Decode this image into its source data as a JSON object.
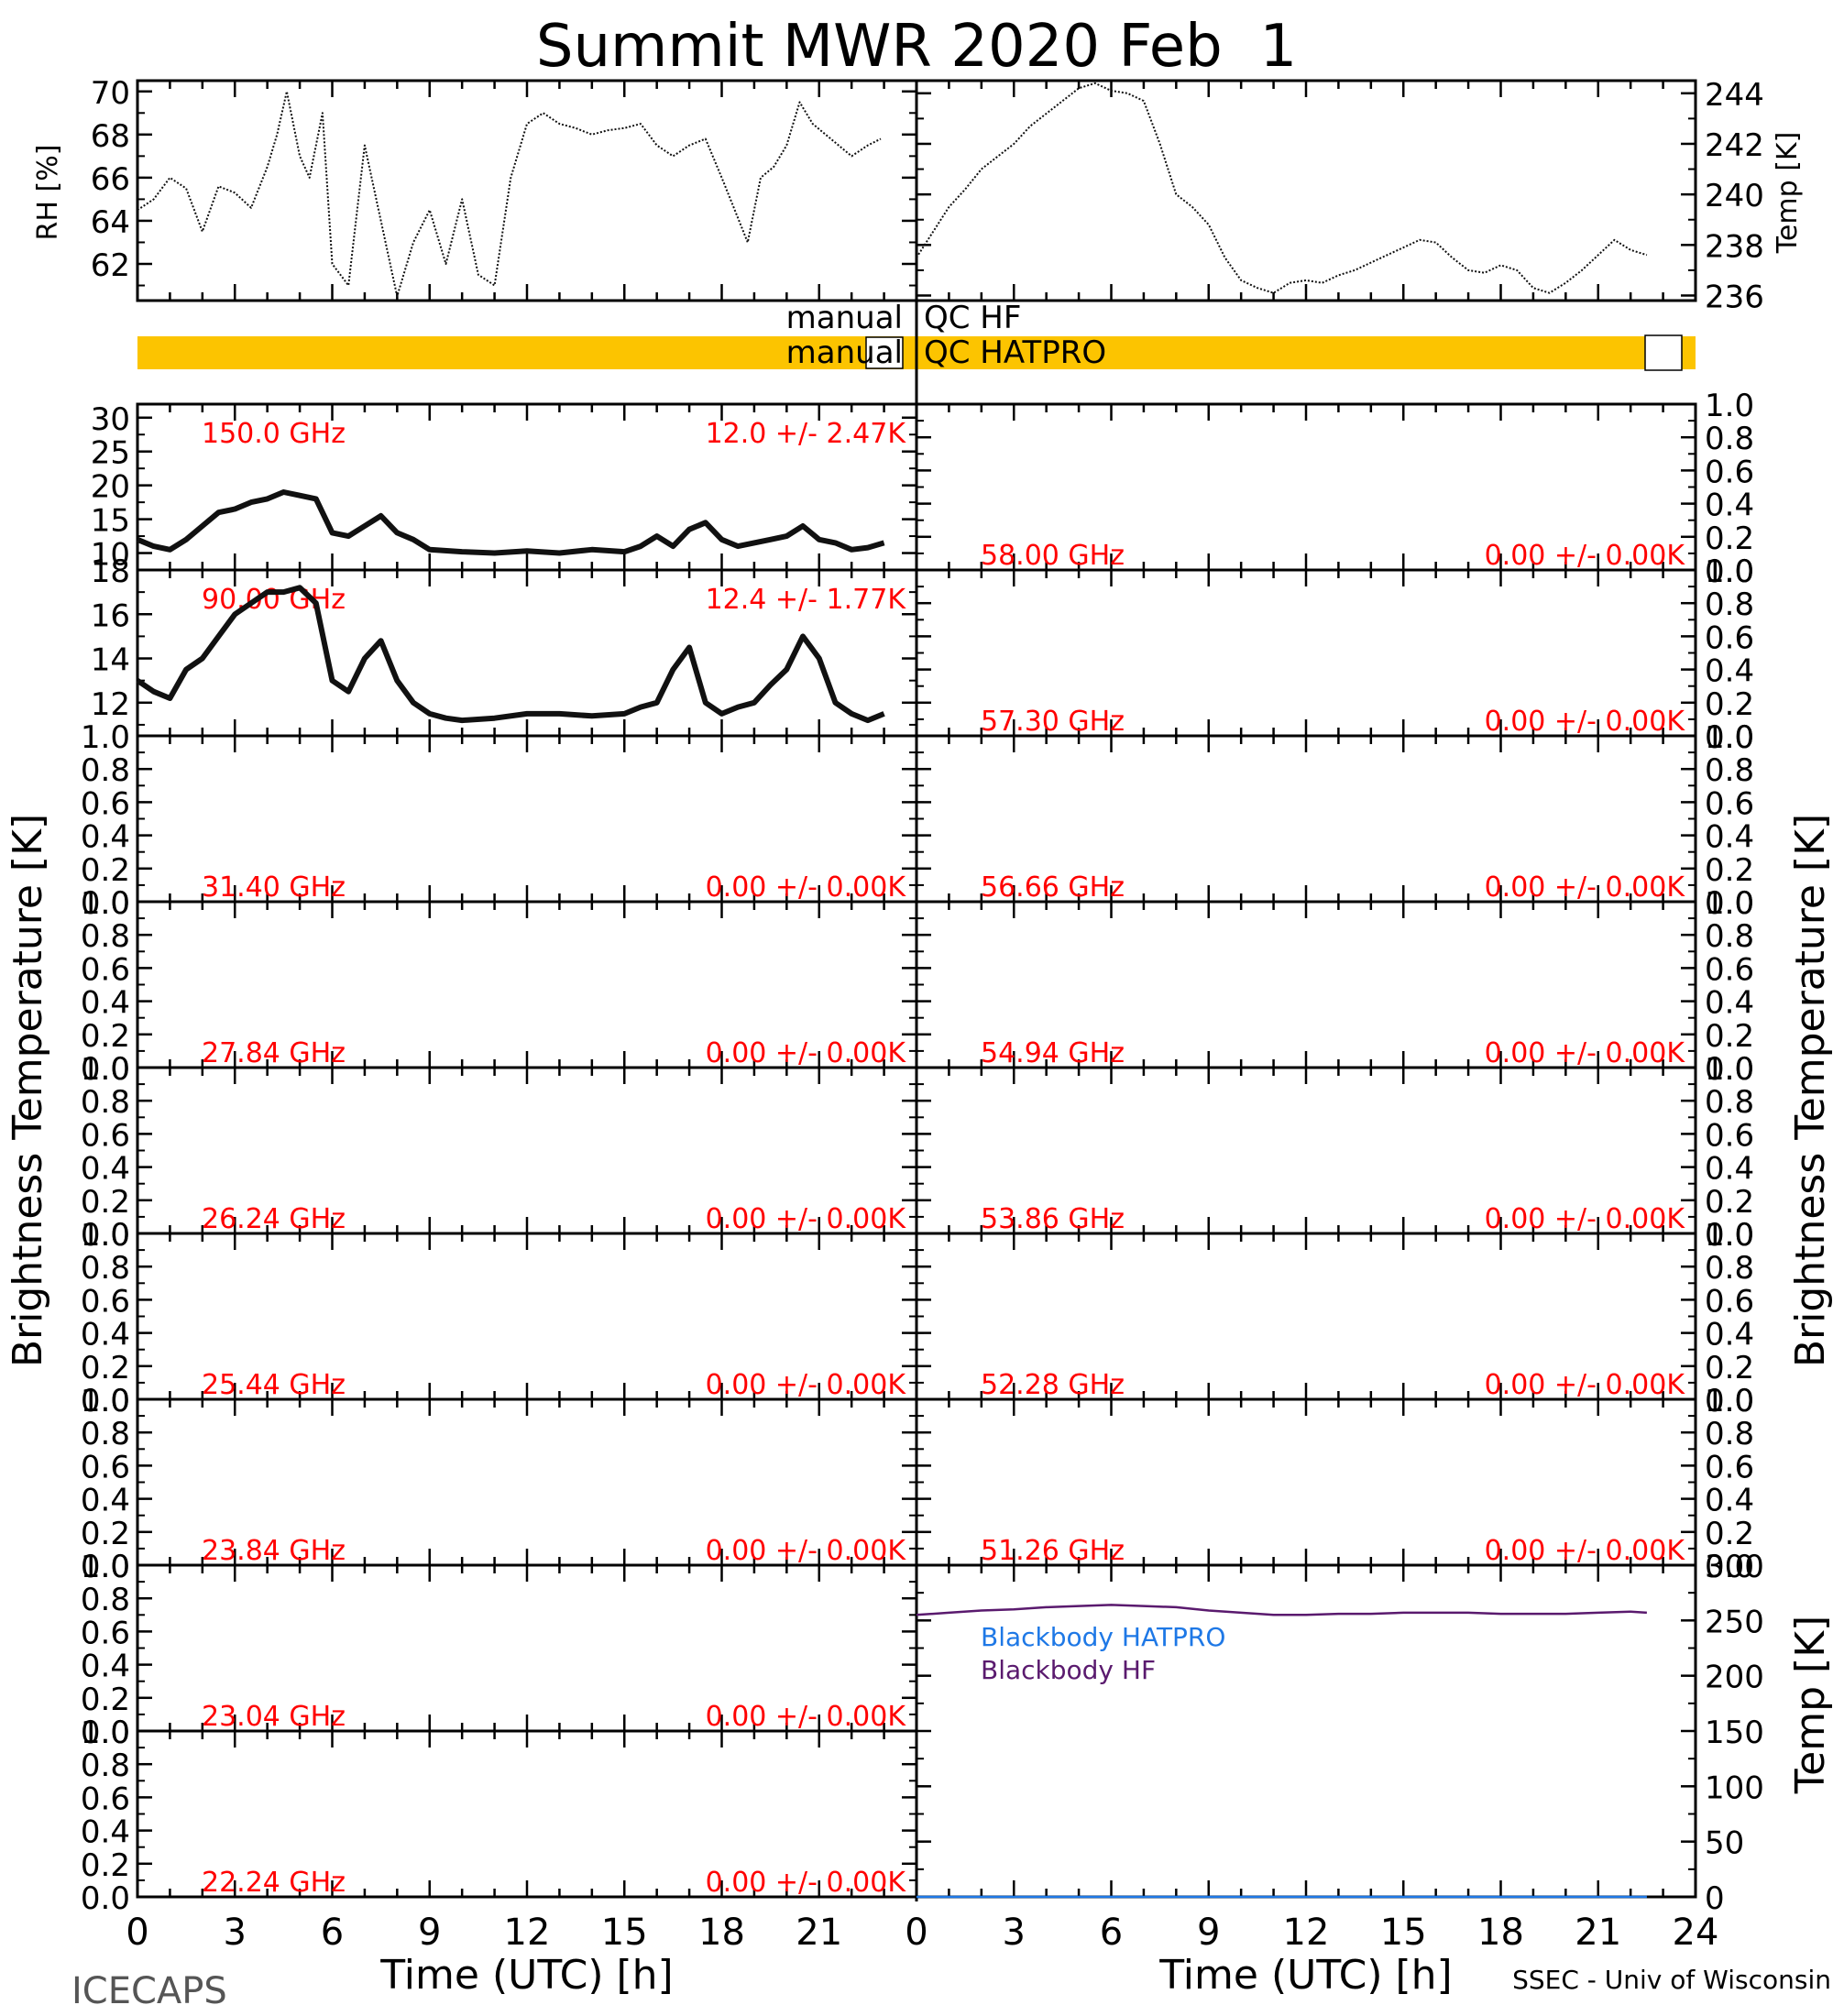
{
  "title": "Summit MWR 2020 Feb  1",
  "footer": {
    "left": "ICECAPS",
    "right": "SSEC - Univ of Wisconsin"
  },
  "axis_labels": {
    "time": "Time (UTC) [h]",
    "brightness_left": "Brightness Temperature [K]",
    "brightness_right": "Brightness Temperature [K]",
    "rh": "RH [%]",
    "temp_top": "Temp [K]",
    "temp_bb": "Temp [K]"
  },
  "qc": {
    "hf_prefix": "manual",
    "hf_label": "QC HF",
    "hatpro_prefix": "manual",
    "hatpro_label": "QC HATPRO",
    "bar_color": "#fcc400"
  },
  "colors": {
    "channel_text": "#ff0000",
    "hatpro": "#1e78e6",
    "hf": "#5a1a6e"
  },
  "chart_data": [
    {
      "type": "line",
      "panel": "rh",
      "ylabel": "RH [%]",
      "xlim": [
        0,
        24
      ],
      "ylim": [
        60.3,
        70.5
      ],
      "yticks": [
        62,
        64,
        66,
        68,
        70
      ],
      "x": [
        0.0,
        0.5,
        1.0,
        1.5,
        2.0,
        2.5,
        3.0,
        3.5,
        4.0,
        4.3,
        4.6,
        5.0,
        5.3,
        5.7,
        6.0,
        6.5,
        7.0,
        7.5,
        8.0,
        8.5,
        9.0,
        9.5,
        10.0,
        10.5,
        11.0,
        11.5,
        12.0,
        12.5,
        13.0,
        13.5,
        14.0,
        14.5,
        15.0,
        15.5,
        16.0,
        16.5,
        17.0,
        17.5,
        18.0,
        18.4,
        18.8,
        19.2,
        19.6,
        20.0,
        20.4,
        20.8,
        21.2,
        21.6,
        22.0,
        22.5,
        22.9
      ],
      "series": [
        {
          "values": [
            64.5,
            65.0,
            66.0,
            65.5,
            63.5,
            65.6,
            65.3,
            64.6,
            66.5,
            68.0,
            70.0,
            67.0,
            66.0,
            69.0,
            62.0,
            61.0,
            67.5,
            64.0,
            60.5,
            63.0,
            64.5,
            62.0,
            65.0,
            61.5,
            61.0,
            66.0,
            68.5,
            69.0,
            68.5,
            68.3,
            68.0,
            68.2,
            68.3,
            68.5,
            67.5,
            67.0,
            67.5,
            67.8,
            66.0,
            64.5,
            63.0,
            66.0,
            66.5,
            67.5,
            69.5,
            68.5,
            68.0,
            67.5,
            67.0,
            67.5,
            67.8
          ]
        }
      ]
    },
    {
      "type": "line",
      "panel": "temp",
      "ylabel": "Temp [K]",
      "xlim": [
        0,
        24
      ],
      "ylim": [
        235.8,
        244.5
      ],
      "yticks": [
        236,
        238,
        240,
        242,
        244
      ],
      "x": [
        0.0,
        0.5,
        1.0,
        1.5,
        2.0,
        2.5,
        3.0,
        3.5,
        4.0,
        4.5,
        5.0,
        5.5,
        6.0,
        6.5,
        7.0,
        7.5,
        8.0,
        8.5,
        9.0,
        9.5,
        10.0,
        10.5,
        11.0,
        11.5,
        12.0,
        12.5,
        13.0,
        13.5,
        14.0,
        14.5,
        15.0,
        15.5,
        16.0,
        16.5,
        17.0,
        17.5,
        18.0,
        18.5,
        19.0,
        19.5,
        20.0,
        20.5,
        21.0,
        21.5,
        22.0,
        22.5
      ],
      "series": [
        {
          "values": [
            237.5,
            238.5,
            239.5,
            240.2,
            241.0,
            241.5,
            242.0,
            242.7,
            243.2,
            243.7,
            244.2,
            244.4,
            244.1,
            244.0,
            243.7,
            242.0,
            240.0,
            239.5,
            238.8,
            237.5,
            236.6,
            236.3,
            236.1,
            236.5,
            236.6,
            236.5,
            236.8,
            237.0,
            237.3,
            237.6,
            237.9,
            238.2,
            238.1,
            237.5,
            237.0,
            236.9,
            237.2,
            237.0,
            236.3,
            236.1,
            236.5,
            237.0,
            237.6,
            238.2,
            237.8,
            237.6
          ]
        }
      ]
    },
    {
      "type": "line",
      "panel": "ch150",
      "title": "150.0 GHz",
      "annotation": "12.0 +/-  2.47K",
      "xlim": [
        0,
        24
      ],
      "ylim": [
        7.5,
        32
      ],
      "yticks": [
        10,
        15,
        20,
        25,
        30
      ],
      "x": [
        0.0,
        0.5,
        1.0,
        1.5,
        2.0,
        2.5,
        3.0,
        3.5,
        4.0,
        4.5,
        5.0,
        5.5,
        6.0,
        6.5,
        7.0,
        7.5,
        8.0,
        8.5,
        9.0,
        10.0,
        11.0,
        12.0,
        13.0,
        14.0,
        15.0,
        15.5,
        16.0,
        16.5,
        17.0,
        17.5,
        18.0,
        18.5,
        19.0,
        19.5,
        20.0,
        20.5,
        21.0,
        21.5,
        22.0,
        22.5,
        23.0
      ],
      "series": [
        {
          "values": [
            12.0,
            11.0,
            10.5,
            12.0,
            14.0,
            16.0,
            16.5,
            17.5,
            18.0,
            19.0,
            18.5,
            18.0,
            13.0,
            12.5,
            14.0,
            15.5,
            13.0,
            12.0,
            10.5,
            10.2,
            10.0,
            10.3,
            10.0,
            10.5,
            10.2,
            11.0,
            12.5,
            11.0,
            13.5,
            14.5,
            12.0,
            11.0,
            11.5,
            12.0,
            12.5,
            14.0,
            12.0,
            11.5,
            10.5,
            10.8,
            11.5
          ]
        }
      ]
    },
    {
      "type": "line",
      "panel": "ch90",
      "title": "90.00 GHz",
      "annotation": "12.4 +/-  1.77K",
      "xlim": [
        0,
        24
      ],
      "ylim": [
        10.5,
        18
      ],
      "yticks": [
        12,
        14,
        16,
        18
      ],
      "x": [
        0.0,
        0.5,
        1.0,
        1.5,
        2.0,
        2.5,
        3.0,
        3.5,
        4.0,
        4.5,
        5.0,
        5.5,
        6.0,
        6.5,
        7.0,
        7.5,
        8.0,
        8.5,
        9.0,
        9.5,
        10.0,
        11.0,
        12.0,
        13.0,
        14.0,
        15.0,
        15.5,
        16.0,
        16.5,
        17.0,
        17.5,
        18.0,
        18.5,
        19.0,
        19.5,
        20.0,
        20.5,
        21.0,
        21.5,
        22.0,
        22.5,
        23.0
      ],
      "series": [
        {
          "values": [
            13.0,
            12.5,
            12.2,
            13.5,
            14.0,
            15.0,
            16.0,
            16.5,
            17.0,
            17.0,
            17.2,
            16.5,
            13.0,
            12.5,
            14.0,
            14.8,
            13.0,
            12.0,
            11.5,
            11.3,
            11.2,
            11.3,
            11.5,
            11.5,
            11.4,
            11.5,
            11.8,
            12.0,
            13.5,
            14.5,
            12.0,
            11.5,
            11.8,
            12.0,
            12.8,
            13.5,
            15.0,
            14.0,
            12.0,
            11.5,
            11.2,
            11.5
          ]
        }
      ]
    },
    {
      "type": "line",
      "panel": "ch3140",
      "title": "31.40 GHz",
      "annotation": "0.00 +/-  0.00K",
      "xlim": [
        0,
        24
      ],
      "ylim": [
        0,
        1
      ],
      "yticks": [
        0.0,
        0.2,
        0.4,
        0.6,
        0.8,
        1.0
      ],
      "series": []
    },
    {
      "type": "line",
      "panel": "ch2784",
      "title": "27.84 GHz",
      "annotation": "0.00 +/-  0.00K",
      "xlim": [
        0,
        24
      ],
      "ylim": [
        0,
        1
      ],
      "yticks": [
        0.0,
        0.2,
        0.4,
        0.6,
        0.8,
        1.0
      ],
      "series": []
    },
    {
      "type": "line",
      "panel": "ch2624",
      "title": "26.24 GHz",
      "annotation": "0.00 +/-  0.00K",
      "xlim": [
        0,
        24
      ],
      "ylim": [
        0,
        1
      ],
      "yticks": [
        0.0,
        0.2,
        0.4,
        0.6,
        0.8,
        1.0
      ],
      "series": []
    },
    {
      "type": "line",
      "panel": "ch2544",
      "title": "25.44 GHz",
      "annotation": "0.00 +/-  0.00K",
      "xlim": [
        0,
        24
      ],
      "ylim": [
        0,
        1
      ],
      "yticks": [
        0.0,
        0.2,
        0.4,
        0.6,
        0.8,
        1.0
      ],
      "series": []
    },
    {
      "type": "line",
      "panel": "ch2384",
      "title": "23.84 GHz",
      "annotation": "0.00 +/-  0.00K",
      "xlim": [
        0,
        24
      ],
      "ylim": [
        0,
        1
      ],
      "yticks": [
        0.0,
        0.2,
        0.4,
        0.6,
        0.8,
        1.0
      ],
      "series": []
    },
    {
      "type": "line",
      "panel": "ch2304",
      "title": "23.04 GHz",
      "annotation": "0.00 +/-  0.00K",
      "xlim": [
        0,
        24
      ],
      "ylim": [
        0,
        1
      ],
      "yticks": [
        0.0,
        0.2,
        0.4,
        0.6,
        0.8,
        1.0
      ],
      "series": []
    },
    {
      "type": "line",
      "panel": "ch2224",
      "title": "22.24 GHz",
      "annotation": "0.00 +/-  0.00K",
      "xlim": [
        0,
        24
      ],
      "ylim": [
        0,
        1
      ],
      "yticks": [
        0.0,
        0.2,
        0.4,
        0.6,
        0.8,
        1.0
      ],
      "series": []
    },
    {
      "type": "line",
      "panel": "ch5800",
      "title": "58.00 GHz",
      "annotation": "0.00 +/-  0.00K",
      "xlim": [
        0,
        24
      ],
      "ylim": [
        0,
        1
      ],
      "yticks": [
        0.0,
        0.2,
        0.4,
        0.6,
        0.8,
        1.0
      ],
      "series": []
    },
    {
      "type": "line",
      "panel": "ch5730",
      "title": "57.30 GHz",
      "annotation": "0.00 +/-  0.00K",
      "xlim": [
        0,
        24
      ],
      "ylim": [
        0,
        1
      ],
      "yticks": [
        0.0,
        0.2,
        0.4,
        0.6,
        0.8,
        1.0
      ],
      "series": []
    },
    {
      "type": "line",
      "panel": "ch5666",
      "title": "56.66 GHz",
      "annotation": "0.00 +/-  0.00K",
      "xlim": [
        0,
        24
      ],
      "ylim": [
        0,
        1
      ],
      "yticks": [
        0.0,
        0.2,
        0.4,
        0.6,
        0.8,
        1.0
      ],
      "series": []
    },
    {
      "type": "line",
      "panel": "ch5494",
      "title": "54.94 GHz",
      "annotation": "0.00 +/-  0.00K",
      "xlim": [
        0,
        24
      ],
      "ylim": [
        0,
        1
      ],
      "yticks": [
        0.0,
        0.2,
        0.4,
        0.6,
        0.8,
        1.0
      ],
      "series": []
    },
    {
      "type": "line",
      "panel": "ch5386",
      "title": "53.86 GHz",
      "annotation": "0.00 +/-  0.00K",
      "xlim": [
        0,
        24
      ],
      "ylim": [
        0,
        1
      ],
      "yticks": [
        0.0,
        0.2,
        0.4,
        0.6,
        0.8,
        1.0
      ],
      "series": []
    },
    {
      "type": "line",
      "panel": "ch5228",
      "title": "52.28 GHz",
      "annotation": "0.00 +/-  0.00K",
      "xlim": [
        0,
        24
      ],
      "ylim": [
        0,
        1
      ],
      "yticks": [
        0.0,
        0.2,
        0.4,
        0.6,
        0.8,
        1.0
      ],
      "series": []
    },
    {
      "type": "line",
      "panel": "ch5126",
      "title": "51.26 GHz",
      "annotation": "0.00 +/-  0.00K",
      "xlim": [
        0,
        24
      ],
      "ylim": [
        0,
        1
      ],
      "yticks": [
        0.0,
        0.2,
        0.4,
        0.6,
        0.8,
        1.0
      ],
      "series": []
    },
    {
      "type": "line",
      "panel": "blackbody",
      "ylabel": "Temp [K]",
      "xlim": [
        0,
        24
      ],
      "ylim": [
        0,
        300
      ],
      "yticks": [
        0,
        50,
        100,
        150,
        200,
        250,
        300
      ],
      "x": [
        0,
        1,
        2,
        3,
        4,
        5,
        6,
        7,
        8,
        9,
        10,
        11,
        12,
        13,
        14,
        15,
        16,
        17,
        18,
        19,
        20,
        21,
        22,
        22.5
      ],
      "series": [
        {
          "name": "Blackbody HATPRO",
          "values": [
            0,
            0,
            0,
            0,
            0,
            0,
            0,
            0,
            0,
            0,
            0,
            0,
            0,
            0,
            0,
            0,
            0,
            0,
            0,
            0,
            0,
            0,
            0,
            0
          ]
        },
        {
          "name": "Blackbody HF",
          "values": [
            255,
            257,
            259,
            260,
            262,
            263,
            264,
            263,
            262,
            259,
            257,
            255,
            255,
            256,
            256,
            257,
            257,
            257,
            256,
            256,
            256,
            257,
            258,
            257
          ]
        }
      ]
    }
  ]
}
